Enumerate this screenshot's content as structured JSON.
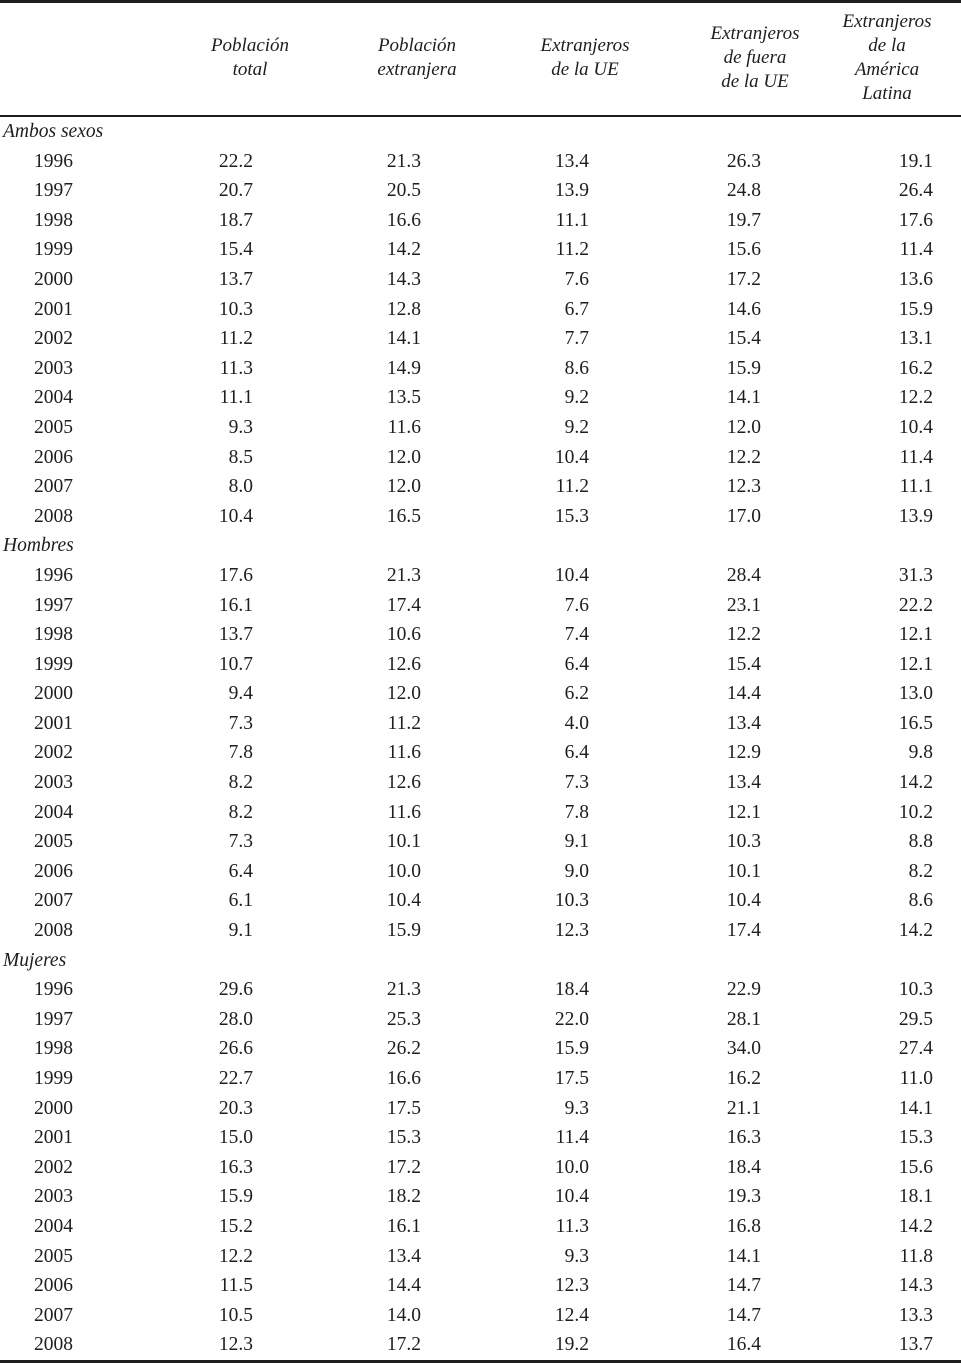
{
  "table": {
    "columns": [
      "Población\ntotal",
      "Población\nextranjera",
      "Extranjeros\nde la UE",
      "Extranjeros\nde fuera\nde la UE",
      "Extranjeros\nde la América\nLatina"
    ],
    "sections": [
      {
        "label": "Ambos sexos",
        "rows": [
          {
            "year": "1996",
            "values": [
              "22.2",
              "21.3",
              "13.4",
              "26.3",
              "19.1"
            ]
          },
          {
            "year": "1997",
            "values": [
              "20.7",
              "20.5",
              "13.9",
              "24.8",
              "26.4"
            ]
          },
          {
            "year": "1998",
            "values": [
              "18.7",
              "16.6",
              "11.1",
              "19.7",
              "17.6"
            ]
          },
          {
            "year": "1999",
            "values": [
              "15.4",
              "14.2",
              "11.2",
              "15.6",
              "11.4"
            ]
          },
          {
            "year": "2000",
            "values": [
              "13.7",
              "14.3",
              "7.6",
              "17.2",
              "13.6"
            ]
          },
          {
            "year": "2001",
            "values": [
              "10.3",
              "12.8",
              "6.7",
              "14.6",
              "15.9"
            ]
          },
          {
            "year": "2002",
            "values": [
              "11.2",
              "14.1",
              "7.7",
              "15.4",
              "13.1"
            ]
          },
          {
            "year": "2003",
            "values": [
              "11.3",
              "14.9",
              "8.6",
              "15.9",
              "16.2"
            ]
          },
          {
            "year": "2004",
            "values": [
              "11.1",
              "13.5",
              "9.2",
              "14.1",
              "12.2"
            ]
          },
          {
            "year": "2005",
            "values": [
              "9.3",
              "11.6",
              "9.2",
              "12.0",
              "10.4"
            ]
          },
          {
            "year": "2006",
            "values": [
              "8.5",
              "12.0",
              "10.4",
              "12.2",
              "11.4"
            ]
          },
          {
            "year": "2007",
            "values": [
              "8.0",
              "12.0",
              "11.2",
              "12.3",
              "11.1"
            ]
          },
          {
            "year": "2008",
            "values": [
              "10.4",
              "16.5",
              "15.3",
              "17.0",
              "13.9"
            ]
          }
        ]
      },
      {
        "label": "Hombres",
        "rows": [
          {
            "year": "1996",
            "values": [
              "17.6",
              "21.3",
              "10.4",
              "28.4",
              "31.3"
            ]
          },
          {
            "year": "1997",
            "values": [
              "16.1",
              "17.4",
              "7.6",
              "23.1",
              "22.2"
            ]
          },
          {
            "year": "1998",
            "values": [
              "13.7",
              "10.6",
              "7.4",
              "12.2",
              "12.1"
            ]
          },
          {
            "year": "1999",
            "values": [
              "10.7",
              "12.6",
              "6.4",
              "15.4",
              "12.1"
            ]
          },
          {
            "year": "2000",
            "values": [
              "9.4",
              "12.0",
              "6.2",
              "14.4",
              "13.0"
            ]
          },
          {
            "year": "2001",
            "values": [
              "7.3",
              "11.2",
              "4.0",
              "13.4",
              "16.5"
            ]
          },
          {
            "year": "2002",
            "values": [
              "7.8",
              "11.6",
              "6.4",
              "12.9",
              "9.8"
            ]
          },
          {
            "year": "2003",
            "values": [
              "8.2",
              "12.6",
              "7.3",
              "13.4",
              "14.2"
            ]
          },
          {
            "year": "2004",
            "values": [
              "8.2",
              "11.6",
              "7.8",
              "12.1",
              "10.2"
            ]
          },
          {
            "year": "2005",
            "values": [
              "7.3",
              "10.1",
              "9.1",
              "10.3",
              "8.8"
            ]
          },
          {
            "year": "2006",
            "values": [
              "6.4",
              "10.0",
              "9.0",
              "10.1",
              "8.2"
            ]
          },
          {
            "year": "2007",
            "values": [
              "6.1",
              "10.4",
              "10.3",
              "10.4",
              "8.6"
            ]
          },
          {
            "year": "2008",
            "values": [
              "9.1",
              "15.9",
              "12.3",
              "17.4",
              "14.2"
            ]
          }
        ]
      },
      {
        "label": "Mujeres",
        "rows": [
          {
            "year": "1996",
            "values": [
              "29.6",
              "21.3",
              "18.4",
              "22.9",
              "10.3"
            ]
          },
          {
            "year": "1997",
            "values": [
              "28.0",
              "25.3",
              "22.0",
              "28.1",
              "29.5"
            ]
          },
          {
            "year": "1998",
            "values": [
              "26.6",
              "26.2",
              "15.9",
              "34.0",
              "27.4"
            ]
          },
          {
            "year": "1999",
            "values": [
              "22.7",
              "16.6",
              "17.5",
              "16.2",
              "11.0"
            ]
          },
          {
            "year": "2000",
            "values": [
              "20.3",
              "17.5",
              "9.3",
              "21.1",
              "14.1"
            ]
          },
          {
            "year": "2001",
            "values": [
              "15.0",
              "15.3",
              "11.4",
              "16.3",
              "15.3"
            ]
          },
          {
            "year": "2002",
            "values": [
              "16.3",
              "17.2",
              "10.0",
              "18.4",
              "15.6"
            ]
          },
          {
            "year": "2003",
            "values": [
              "15.9",
              "18.2",
              "10.4",
              "19.3",
              "18.1"
            ]
          },
          {
            "year": "2004",
            "values": [
              "15.2",
              "16.1",
              "11.3",
              "16.8",
              "14.2"
            ]
          },
          {
            "year": "2005",
            "values": [
              "12.2",
              "13.4",
              "9.3",
              "14.1",
              "11.8"
            ]
          },
          {
            "year": "2006",
            "values": [
              "11.5",
              "14.4",
              "12.3",
              "14.7",
              "14.3"
            ]
          },
          {
            "year": "2007",
            "values": [
              "10.5",
              "14.0",
              "12.4",
              "14.7",
              "13.3"
            ]
          },
          {
            "year": "2008",
            "values": [
              "12.3",
              "17.2",
              "19.2",
              "16.4",
              "13.7"
            ]
          }
        ]
      }
    ]
  }
}
